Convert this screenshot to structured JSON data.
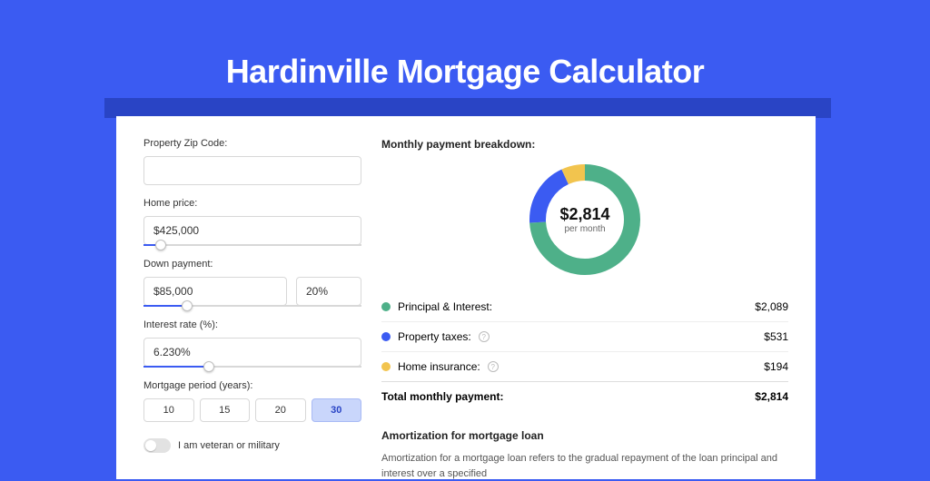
{
  "page": {
    "title": "Hardinville Mortgage Calculator",
    "background": "#3b5bf2",
    "shadow_band_color": "#2944c5"
  },
  "form": {
    "zip": {
      "label": "Property Zip Code:",
      "value": ""
    },
    "home_price": {
      "label": "Home price:",
      "value": "$425,000",
      "slider_pct": 8
    },
    "down_payment": {
      "label": "Down payment:",
      "value": "$85,000",
      "pct_value": "20%",
      "slider_pct": 20
    },
    "interest_rate": {
      "label": "Interest rate (%):",
      "value": "6.230%",
      "slider_pct": 30
    },
    "period": {
      "label": "Mortgage period (years):",
      "options": [
        "10",
        "15",
        "20",
        "30"
      ],
      "active_index": 3
    },
    "veteran": {
      "label": "I am veteran or military",
      "on": false
    }
  },
  "breakdown": {
    "title": "Monthly payment breakdown:",
    "center_amount": "$2,814",
    "center_sub": "per month",
    "items": [
      {
        "key": "principal",
        "label": "Principal & Interest:",
        "value": "$2,089",
        "color": "#4eb089",
        "pct": 74,
        "info": false
      },
      {
        "key": "taxes",
        "label": "Property taxes:",
        "value": "$531",
        "color": "#3b5bf2",
        "pct": 19,
        "info": true
      },
      {
        "key": "insurance",
        "label": "Home insurance:",
        "value": "$194",
        "color": "#f2c44e",
        "pct": 7,
        "info": true
      }
    ],
    "total": {
      "label": "Total monthly payment:",
      "value": "$2,814"
    }
  },
  "amortization": {
    "title": "Amortization for mortgage loan",
    "text": "Amortization for a mortgage loan refers to the gradual repayment of the loan principal and interest over a specified"
  },
  "chart": {
    "type": "donut",
    "stroke_width": 18,
    "radius": 52,
    "background": "#ffffff"
  }
}
